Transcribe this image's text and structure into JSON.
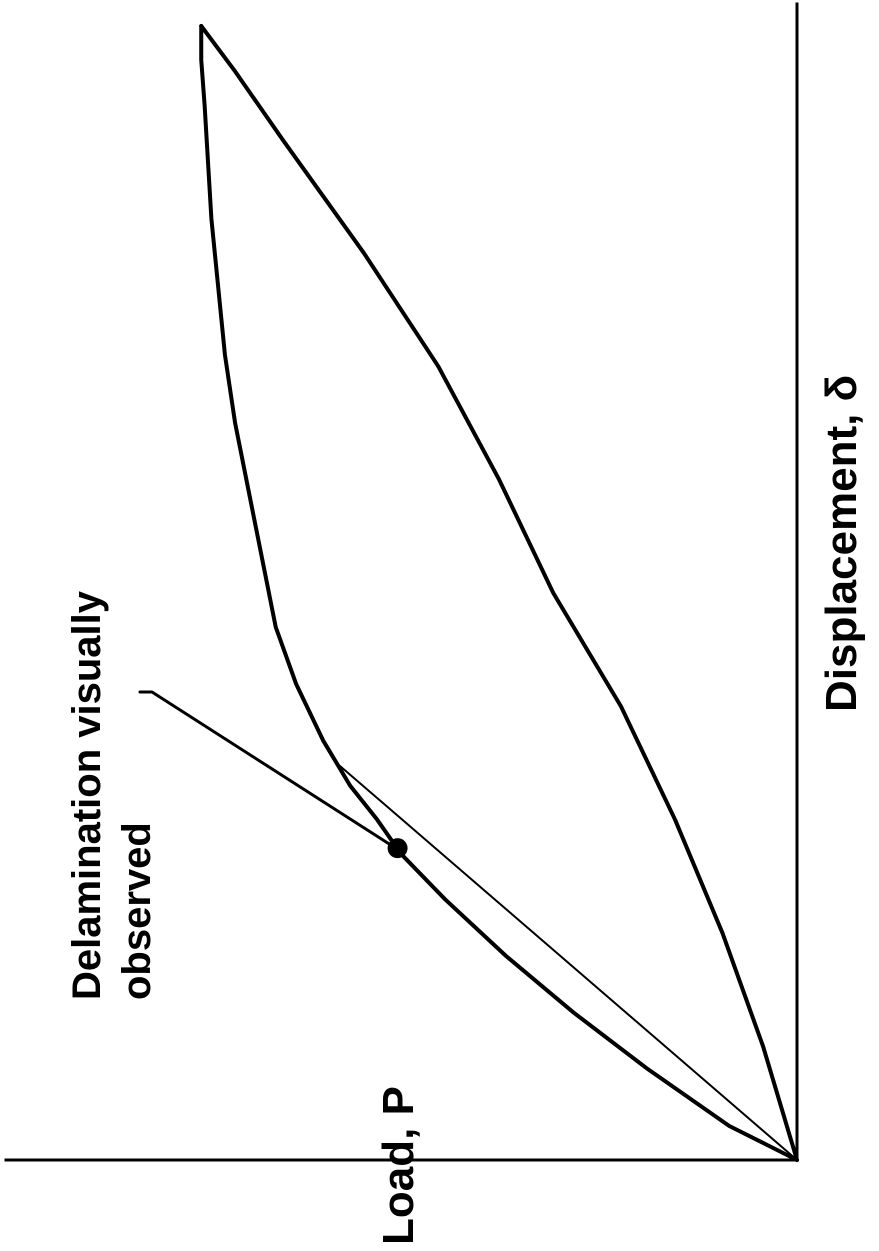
{
  "chart_data": {
    "type": "line",
    "orientation": "rotated-90-ccw",
    "xlabel": "Displacement, δ",
    "ylabel": "Load, P",
    "xlim": [
      0,
      1
    ],
    "ylim": [
      0,
      1
    ],
    "grid": false,
    "series": [
      {
        "x": [
          0,
          0.03,
          0.08,
          0.13,
          0.18,
          0.23,
          0.27,
          0.3,
          0.33,
          0.37,
          0.42,
          0.47,
          0.53,
          0.59,
          0.65,
          0.71,
          0.77,
          0.83,
          0.88,
          0.93,
          0.97,
          1.0
        ],
        "y": [
          0,
          0.1,
          0.22,
          0.33,
          0.43,
          0.52,
          0.585,
          0.62,
          0.66,
          0.7,
          0.74,
          0.77,
          0.79,
          0.81,
          0.83,
          0.845,
          0.855,
          0.865,
          0.87,
          0.875,
          0.88,
          0.88
        ]
      },
      {
        "x": [
          0,
          0.1,
          0.2,
          0.3,
          0.4,
          0.5,
          0.6,
          0.7,
          0.8,
          0.9,
          0.96,
          1.0
        ],
        "y": [
          0,
          0.05,
          0.11,
          0.18,
          0.26,
          0.36,
          0.44,
          0.53,
          0.64,
          0.76,
          0.83,
          0.88
        ]
      },
      {
        "x": [
          0,
          0.35
        ],
        "y": [
          0,
          0.68
        ]
      }
    ],
    "marker": {
      "x": 0.275,
      "y": 0.59
    },
    "annotations": [
      {
        "lines": [
          "Delamination visually",
          "observed"
        ],
        "target": {
          "x": 0.275,
          "y": 0.59
        }
      }
    ]
  }
}
